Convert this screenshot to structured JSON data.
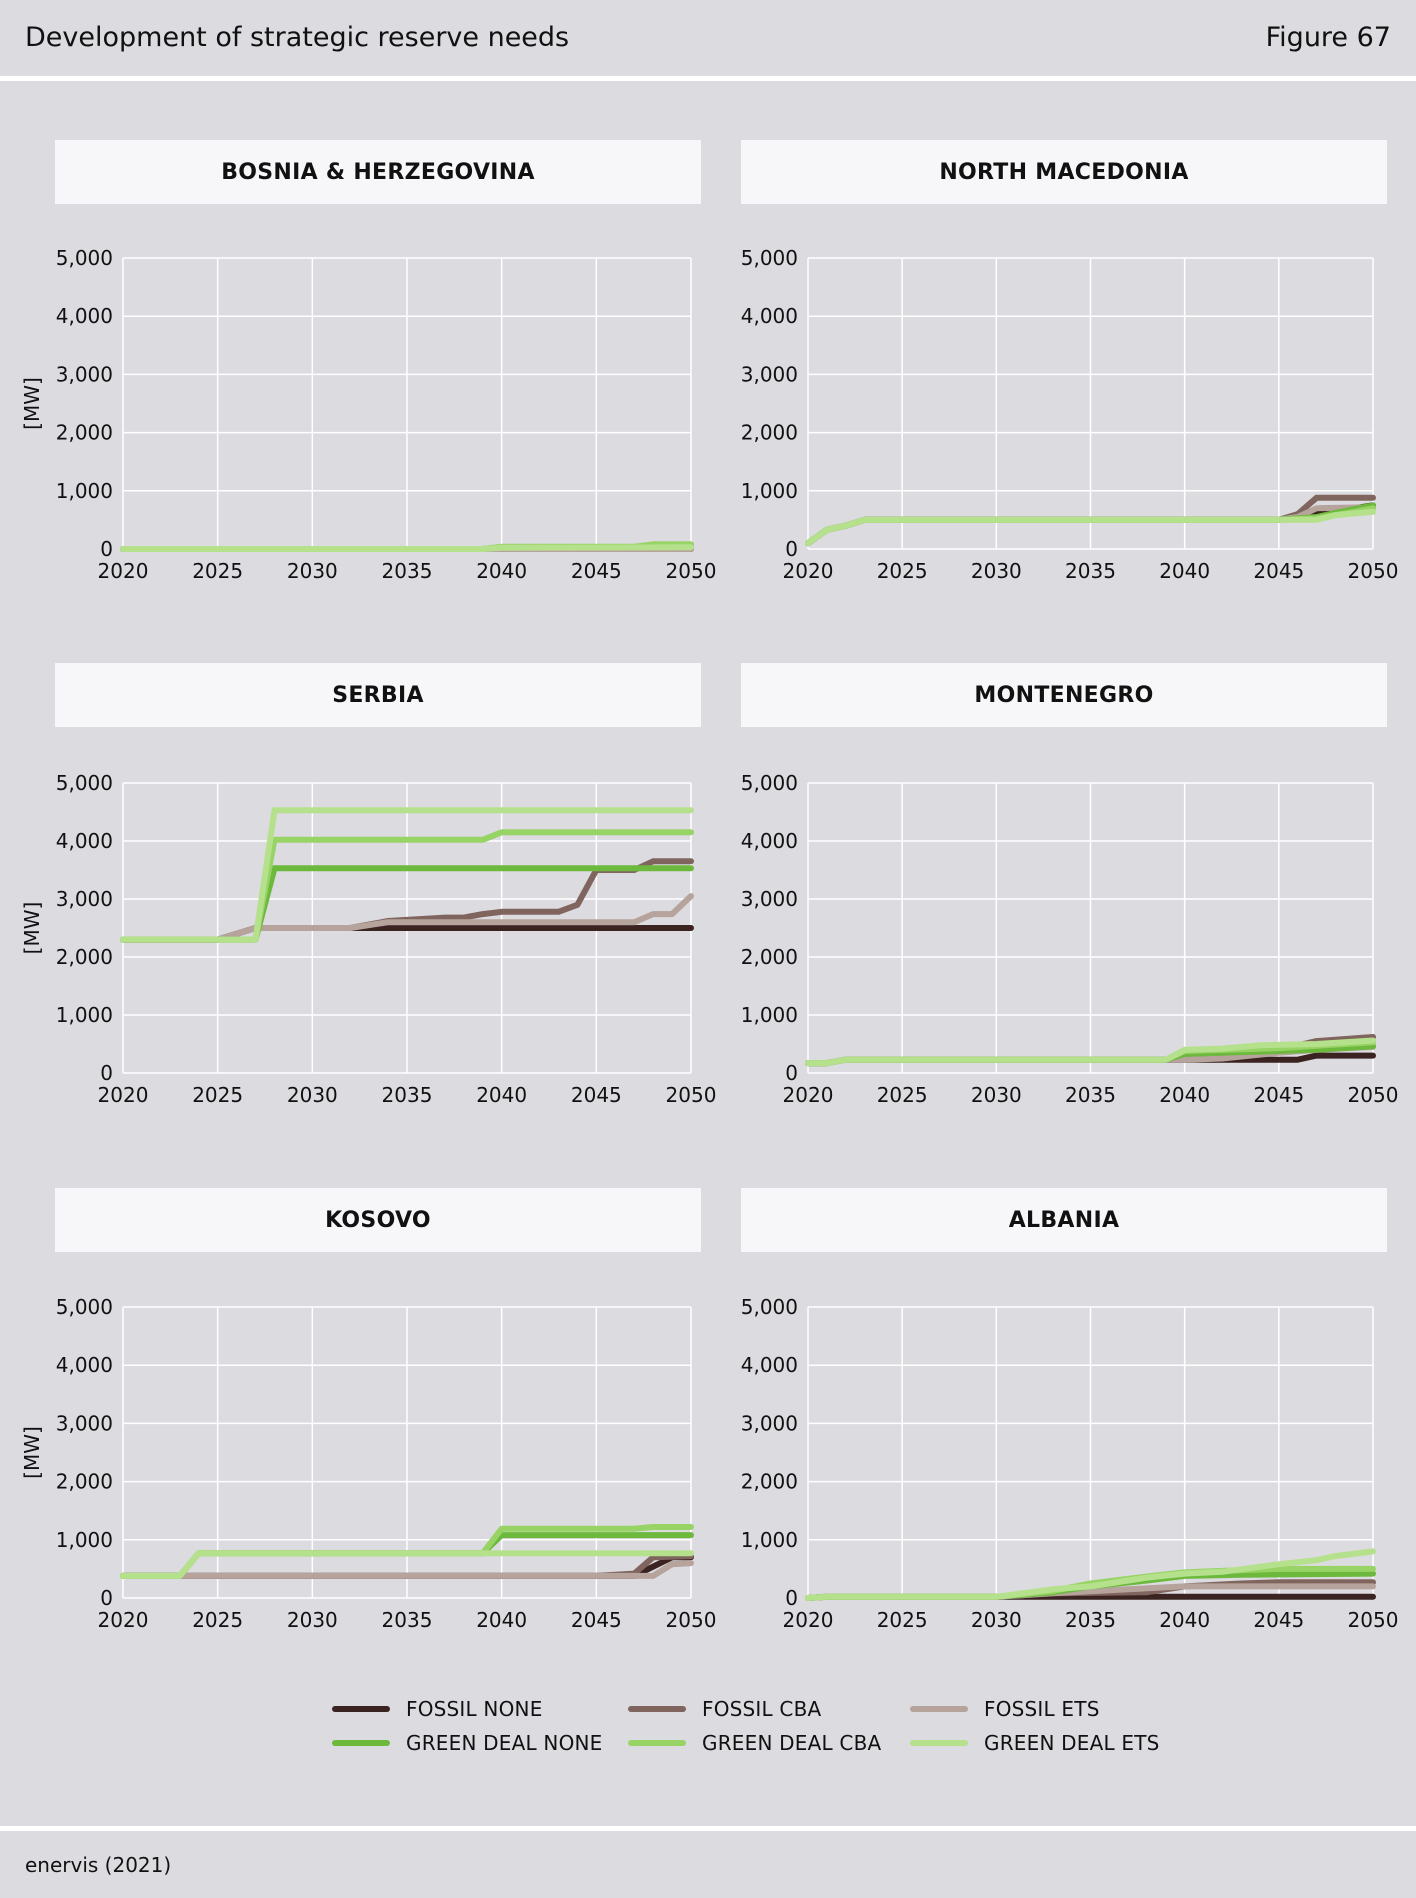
{
  "header": {
    "title": "Development of strategic reserve needs",
    "figure": "Figure 67"
  },
  "footer": {
    "source": "enervis (2021)"
  },
  "legend": {
    "items": [
      {
        "label": "FOSSIL NONE",
        "color": "#3a2321"
      },
      {
        "label": "FOSSIL CBA",
        "color": "#7f655e"
      },
      {
        "label": "FOSSIL ETS",
        "color": "#b6a39c"
      },
      {
        "label": "GREEN DEAL NONE",
        "color": "#6cb93d"
      },
      {
        "label": "GREEN DEAL CBA",
        "color": "#98d365"
      },
      {
        "label": "GREEN DEAL ETS",
        "color": "#b5e18d"
      }
    ]
  },
  "chart_data": [
    {
      "type": "line",
      "title": "BOSNIA & HERZEGOVINA",
      "ylabel": "[MW]",
      "xlim": [
        2020,
        2050
      ],
      "ylim": [
        0,
        5000
      ],
      "xticks": [
        "2020",
        "2025",
        "2030",
        "2035",
        "2040",
        "2045",
        "2050"
      ],
      "yticks": [
        "0",
        "1,000",
        "2,000",
        "3,000",
        "4,000",
        "5,000"
      ],
      "grid": true,
      "series": [
        {
          "name": "FOSSIL NONE",
          "x": [
            2020,
            2050
          ],
          "y": [
            0,
            0
          ]
        },
        {
          "name": "FOSSIL CBA",
          "x": [
            2020,
            2050
          ],
          "y": [
            0,
            0
          ]
        },
        {
          "name": "FOSSIL ETS",
          "x": [
            2020,
            2050
          ],
          "y": [
            0,
            0
          ]
        },
        {
          "name": "GREEN DEAL NONE",
          "x": [
            2020,
            2039,
            2040,
            2047,
            2048,
            2050
          ],
          "y": [
            0,
            0,
            30,
            30,
            60,
            60
          ]
        },
        {
          "name": "GREEN DEAL CBA",
          "x": [
            2020,
            2039,
            2040,
            2047,
            2048,
            2050
          ],
          "y": [
            0,
            0,
            40,
            40,
            80,
            80
          ]
        },
        {
          "name": "GREEN DEAL ETS",
          "x": [
            2020,
            2039,
            2040,
            2050
          ],
          "y": [
            0,
            0,
            20,
            30
          ]
        }
      ]
    },
    {
      "type": "line",
      "title": "NORTH MACEDONIA",
      "ylabel": "",
      "xlim": [
        2020,
        2050
      ],
      "ylim": [
        0,
        5000
      ],
      "xticks": [
        "2020",
        "2025",
        "2030",
        "2035",
        "2040",
        "2045",
        "2050"
      ],
      "yticks": [
        "0",
        "1,000",
        "2,000",
        "3,000",
        "4,000",
        "5,000"
      ],
      "grid": true,
      "series": [
        {
          "name": "FOSSIL NONE",
          "x": [
            2020,
            2021,
            2022,
            2023,
            2045,
            2046,
            2047,
            2048,
            2050
          ],
          "y": [
            100,
            330,
            400,
            500,
            500,
            550,
            600,
            650,
            750
          ]
        },
        {
          "name": "FOSSIL CBA",
          "x": [
            2020,
            2021,
            2022,
            2023,
            2045,
            2046,
            2047,
            2050
          ],
          "y": [
            100,
            330,
            400,
            500,
            500,
            600,
            880,
            880
          ]
        },
        {
          "name": "FOSSIL ETS",
          "x": [
            2020,
            2021,
            2022,
            2023,
            2045,
            2046,
            2047,
            2050
          ],
          "y": [
            100,
            330,
            400,
            500,
            500,
            550,
            700,
            720
          ]
        },
        {
          "name": "GREEN DEAL NONE",
          "x": [
            2020,
            2021,
            2022,
            2023,
            2045,
            2047,
            2048,
            2050
          ],
          "y": [
            100,
            330,
            400,
            500,
            500,
            550,
            620,
            750
          ]
        },
        {
          "name": "GREEN DEAL CBA",
          "x": [
            2020,
            2021,
            2022,
            2023,
            2045,
            2047,
            2049,
            2050
          ],
          "y": [
            100,
            330,
            400,
            500,
            500,
            530,
            640,
            700
          ]
        },
        {
          "name": "GREEN DEAL ETS",
          "x": [
            2020,
            2021,
            2022,
            2023,
            2045,
            2047,
            2048,
            2050
          ],
          "y": [
            100,
            330,
            400,
            500,
            500,
            500,
            580,
            640
          ]
        }
      ]
    },
    {
      "type": "line",
      "title": "SERBIA",
      "ylabel": "[MW]",
      "xlim": [
        2020,
        2050
      ],
      "ylim": [
        0,
        5000
      ],
      "xticks": [
        "2020",
        "2025",
        "2030",
        "2035",
        "2040",
        "2045",
        "2050"
      ],
      "yticks": [
        "0",
        "1,000",
        "2,000",
        "3,000",
        "4,000",
        "5,000"
      ],
      "grid": true,
      "series": [
        {
          "name": "FOSSIL NONE",
          "x": [
            2020,
            2025,
            2027,
            2032,
            2034,
            2050
          ],
          "y": [
            2300,
            2300,
            2500,
            2500,
            2500,
            2500
          ]
        },
        {
          "name": "FOSSIL CBA",
          "x": [
            2020,
            2025,
            2027,
            2032,
            2034,
            2037,
            2038,
            2039,
            2040,
            2043,
            2044,
            2045,
            2047,
            2048,
            2050
          ],
          "y": [
            2300,
            2300,
            2500,
            2500,
            2620,
            2680,
            2680,
            2740,
            2780,
            2780,
            2900,
            3500,
            3500,
            3650,
            3650
          ]
        },
        {
          "name": "FOSSIL ETS",
          "x": [
            2020,
            2025,
            2027,
            2032,
            2034,
            2047,
            2048,
            2049,
            2050
          ],
          "y": [
            2300,
            2300,
            2500,
            2500,
            2600,
            2600,
            2740,
            2740,
            3050
          ]
        },
        {
          "name": "GREEN DEAL NONE",
          "x": [
            2020,
            2027,
            2028,
            2050
          ],
          "y": [
            2300,
            2300,
            3530,
            3530
          ]
        },
        {
          "name": "GREEN DEAL CBA",
          "x": [
            2020,
            2027,
            2028,
            2039,
            2040,
            2050
          ],
          "y": [
            2300,
            2300,
            4020,
            4020,
            4150,
            4150
          ]
        },
        {
          "name": "GREEN DEAL ETS",
          "x": [
            2020,
            2027,
            2028,
            2050
          ],
          "y": [
            2300,
            2300,
            4530,
            4530
          ]
        }
      ]
    },
    {
      "type": "line",
      "title": "MONTENEGRO",
      "ylabel": "",
      "xlim": [
        2020,
        2050
      ],
      "ylim": [
        0,
        5000
      ],
      "xticks": [
        "2020",
        "2025",
        "2030",
        "2035",
        "2040",
        "2045",
        "2050"
      ],
      "yticks": [
        "0",
        "1,000",
        "2,000",
        "3,000",
        "4,000",
        "5,000"
      ],
      "grid": true,
      "series": [
        {
          "name": "FOSSIL NONE",
          "x": [
            2020,
            2021,
            2022,
            2039,
            2040,
            2046,
            2047,
            2050
          ],
          "y": [
            170,
            170,
            230,
            230,
            230,
            230,
            300,
            300
          ]
        },
        {
          "name": "FOSSIL CBA",
          "x": [
            2020,
            2021,
            2022,
            2039,
            2040,
            2042,
            2045,
            2047,
            2050
          ],
          "y": [
            170,
            170,
            230,
            230,
            230,
            260,
            400,
            550,
            620
          ]
        },
        {
          "name": "FOSSIL ETS",
          "x": [
            2020,
            2021,
            2022,
            2039,
            2040,
            2042,
            2045,
            2047,
            2050
          ],
          "y": [
            170,
            170,
            230,
            230,
            230,
            250,
            350,
            400,
            450
          ]
        },
        {
          "name": "GREEN DEAL NONE",
          "x": [
            2020,
            2021,
            2022,
            2039,
            2040,
            2045,
            2047,
            2050
          ],
          "y": [
            170,
            170,
            230,
            230,
            330,
            380,
            400,
            460
          ]
        },
        {
          "name": "GREEN DEAL CBA",
          "x": [
            2020,
            2021,
            2022,
            2039,
            2040,
            2045,
            2047,
            2050
          ],
          "y": [
            170,
            170,
            230,
            230,
            380,
            430,
            470,
            530
          ]
        },
        {
          "name": "GREEN DEAL ETS",
          "x": [
            2020,
            2021,
            2022,
            2039,
            2040,
            2042,
            2044,
            2047,
            2050
          ],
          "y": [
            170,
            170,
            230,
            230,
            400,
            420,
            480,
            500,
            560
          ]
        }
      ]
    },
    {
      "type": "line",
      "title": "KOSOVO",
      "ylabel": "[MW]",
      "xlim": [
        2020,
        2050
      ],
      "ylim": [
        0,
        5000
      ],
      "xticks": [
        "2020",
        "2025",
        "2030",
        "2035",
        "2040",
        "2045",
        "2050"
      ],
      "yticks": [
        "0",
        "1,000",
        "2,000",
        "3,000",
        "4,000",
        "5,000"
      ],
      "grid": true,
      "series": [
        {
          "name": "FOSSIL NONE",
          "x": [
            2020,
            2023,
            2024,
            2047,
            2049,
            2050
          ],
          "y": [
            380,
            380,
            380,
            380,
            700,
            700
          ]
        },
        {
          "name": "FOSSIL CBA",
          "x": [
            2020,
            2023,
            2024,
            2045,
            2047,
            2048,
            2050
          ],
          "y": [
            380,
            380,
            380,
            380,
            420,
            700,
            720
          ]
        },
        {
          "name": "FOSSIL ETS",
          "x": [
            2020,
            2023,
            2024,
            2048,
            2049,
            2050
          ],
          "y": [
            380,
            380,
            380,
            380,
            580,
            600
          ]
        },
        {
          "name": "GREEN DEAL NONE",
          "x": [
            2020,
            2023,
            2024,
            2039,
            2040,
            2050
          ],
          "y": [
            380,
            380,
            770,
            770,
            1080,
            1080
          ]
        },
        {
          "name": "GREEN DEAL CBA",
          "x": [
            2020,
            2023,
            2024,
            2039,
            2040,
            2047,
            2048,
            2050
          ],
          "y": [
            380,
            380,
            770,
            770,
            1190,
            1190,
            1220,
            1220
          ]
        },
        {
          "name": "GREEN DEAL ETS",
          "x": [
            2020,
            2023,
            2024,
            2050
          ],
          "y": [
            380,
            380,
            770,
            770
          ]
        }
      ]
    },
    {
      "type": "line",
      "title": "ALBANIA",
      "ylabel": "",
      "xlim": [
        2020,
        2050
      ],
      "ylim": [
        0,
        5000
      ],
      "xticks": [
        "2020",
        "2025",
        "2030",
        "2035",
        "2040",
        "2045",
        "2050"
      ],
      "yticks": [
        "0",
        "1,000",
        "2,000",
        "3,000",
        "4,000",
        "5,000"
      ],
      "grid": true,
      "series": [
        {
          "name": "FOSSIL NONE",
          "x": [
            2020,
            2021,
            2030,
            2033,
            2050
          ],
          "y": [
            0,
            20,
            20,
            20,
            20
          ]
        },
        {
          "name": "FOSSIL CBA",
          "x": [
            2020,
            2021,
            2030,
            2033,
            2038,
            2040,
            2043,
            2045,
            2050
          ],
          "y": [
            0,
            20,
            20,
            80,
            100,
            200,
            250,
            270,
            270
          ]
        },
        {
          "name": "FOSSIL ETS",
          "x": [
            2020,
            2021,
            2030,
            2033,
            2037,
            2040,
            2045,
            2050
          ],
          "y": [
            0,
            20,
            20,
            80,
            150,
            200,
            200,
            200
          ]
        },
        {
          "name": "GREEN DEAL NONE",
          "x": [
            2020,
            2021,
            2030,
            2033,
            2035,
            2038,
            2040,
            2043,
            2050
          ],
          "y": [
            0,
            20,
            20,
            100,
            200,
            300,
            380,
            400,
            420
          ]
        },
        {
          "name": "GREEN DEAL CBA",
          "x": [
            2020,
            2021,
            2030,
            2033,
            2035,
            2038,
            2040,
            2043,
            2045,
            2050
          ],
          "y": [
            0,
            20,
            20,
            120,
            250,
            370,
            440,
            480,
            500,
            500
          ]
        },
        {
          "name": "GREEN DEAL ETS",
          "x": [
            2020,
            2021,
            2030,
            2033,
            2035,
            2038,
            2040,
            2042,
            2045,
            2047,
            2048,
            2050
          ],
          "y": [
            0,
            20,
            20,
            150,
            200,
            350,
            420,
            450,
            580,
            650,
            720,
            800
          ]
        }
      ]
    }
  ]
}
